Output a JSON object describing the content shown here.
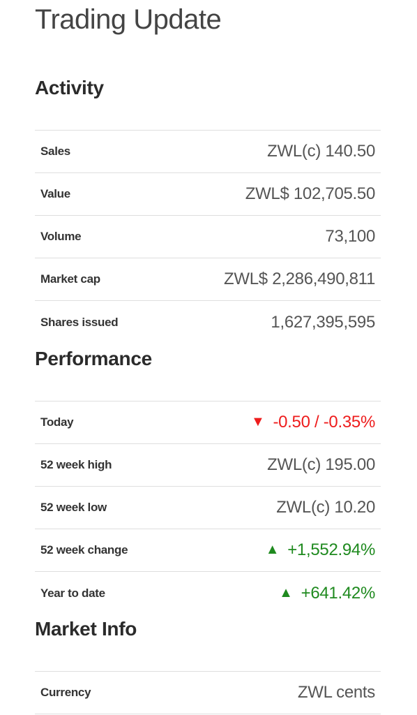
{
  "page": {
    "title": "Trading Update"
  },
  "activity": {
    "heading": "Activity",
    "rows": [
      {
        "label": "Sales",
        "value": "ZWL(c) 140.50"
      },
      {
        "label": "Value",
        "value": "ZWL$ 102,705.50"
      },
      {
        "label": "Volume",
        "value": "73,100"
      },
      {
        "label": "Market cap",
        "value": "ZWL$ 2,286,490,811"
      },
      {
        "label": "Shares issued",
        "value": "1,627,395,595"
      }
    ]
  },
  "performance": {
    "heading": "Performance",
    "rows": [
      {
        "label": "Today",
        "value": "-0.50 / -0.35%",
        "arrow": "▼",
        "direction": "down"
      },
      {
        "label": "52 week high",
        "value": "ZWL(c) 195.00"
      },
      {
        "label": "52 week low",
        "value": "ZWL(c) 10.20"
      },
      {
        "label": "52 week change",
        "value": "+1,552.94%",
        "arrow": "▲",
        "direction": "up"
      },
      {
        "label": "Year to date",
        "value": "+641.42%",
        "arrow": "▲",
        "direction": "up"
      }
    ]
  },
  "market_info": {
    "heading": "Market Info",
    "rows": [
      {
        "label": "Currency",
        "value": "ZWL cents"
      }
    ]
  },
  "colors": {
    "down": "#ee1c1c",
    "up": "#1f8a1f",
    "divider": "#dedede",
    "text": "#333333"
  }
}
